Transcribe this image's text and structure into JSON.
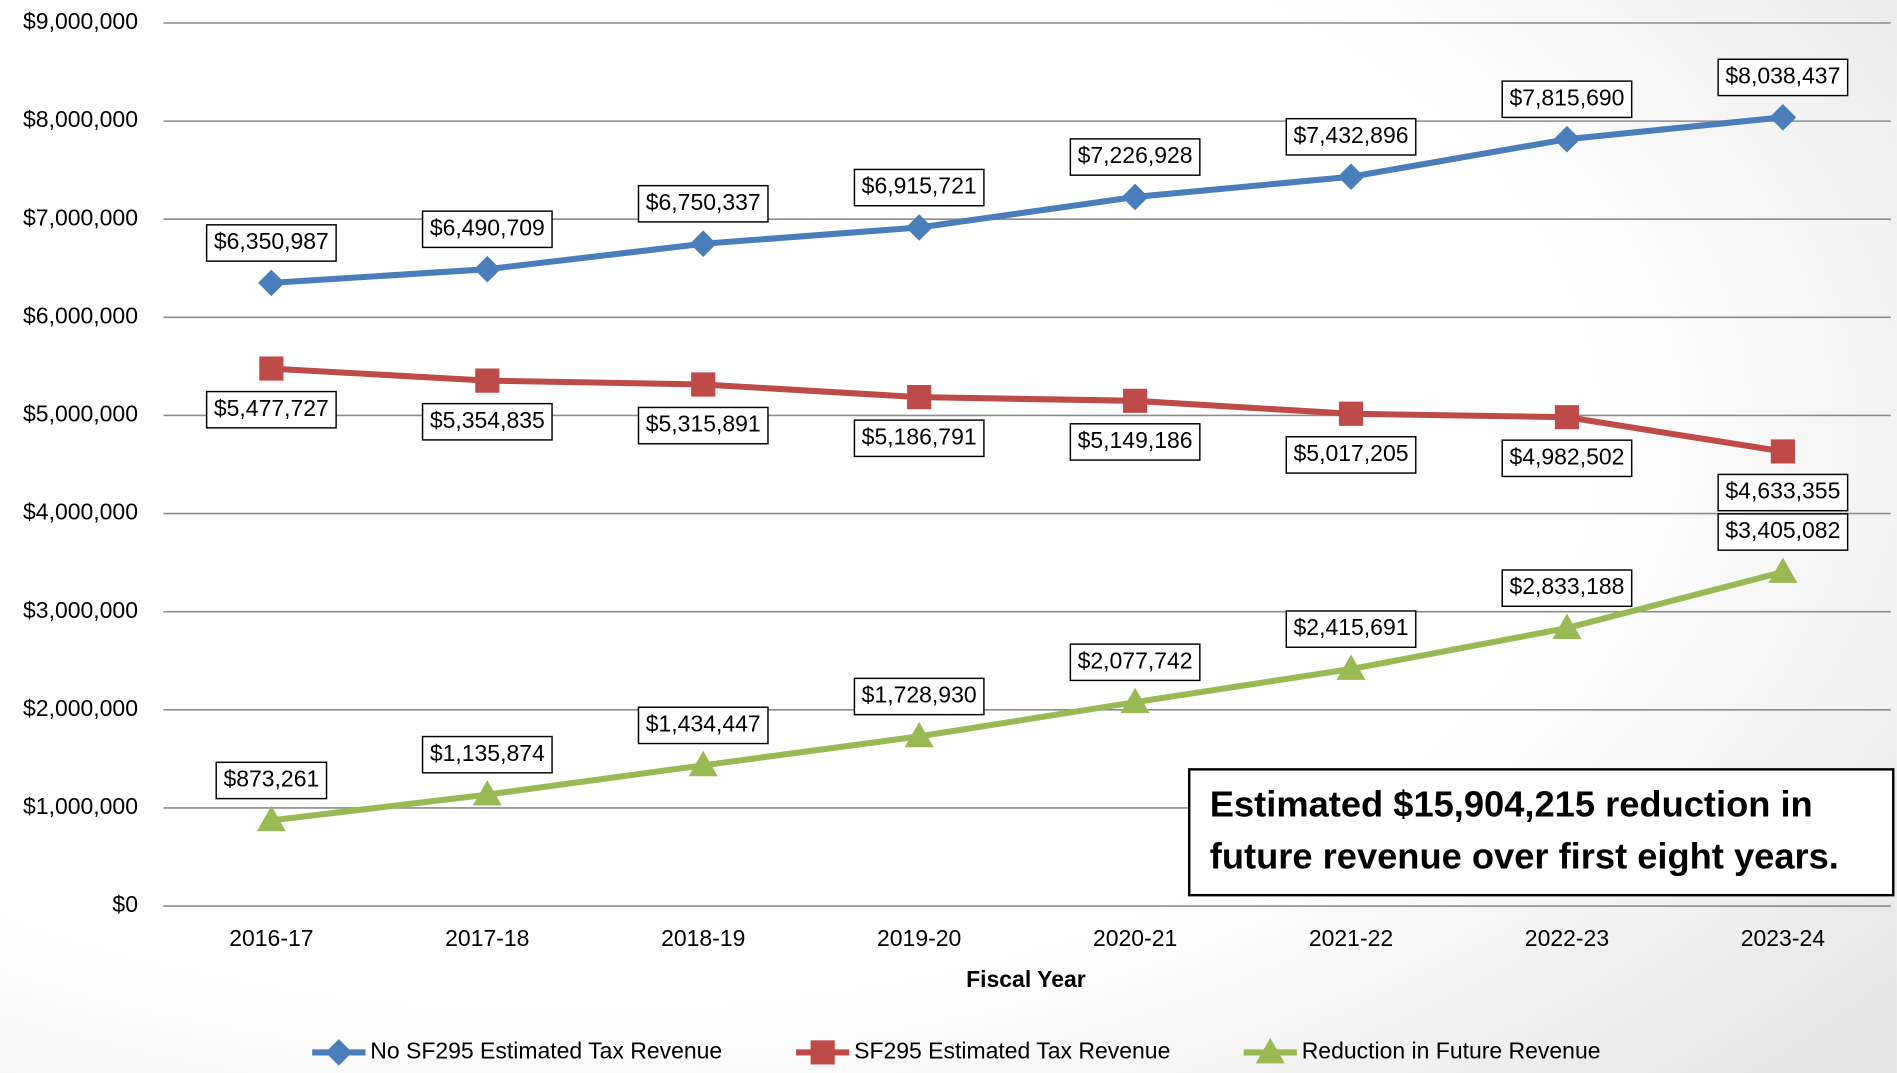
{
  "chart_data": {
    "type": "line",
    "xlabel": "Fiscal Year",
    "categories": [
      "2016-17",
      "2017-18",
      "2018-19",
      "2019-20",
      "2020-21",
      "2021-22",
      "2022-23",
      "2023-24"
    ],
    "series": [
      {
        "name": "No SF295 Estimated Tax Revenue",
        "color": "#4a7ebb",
        "marker": "diamond",
        "values": [
          6350987,
          6490709,
          6750337,
          6915721,
          7226928,
          7432896,
          7815690,
          8038437
        ],
        "value_labels": [
          "$6,350,987",
          "$6,490,709",
          "$6,750,337",
          "$6,915,721",
          "$7,226,928",
          "$7,432,896",
          "$7,815,690",
          "$8,038,437"
        ]
      },
      {
        "name": "SF295 Estimated Tax Revenue",
        "color": "#be4b48",
        "marker": "square",
        "values": [
          5477727,
          5354835,
          5315891,
          5186791,
          5149186,
          5017205,
          4982502,
          4633355
        ],
        "value_labels": [
          "$5,477,727",
          "$5,354,835",
          "$5,315,891",
          "$5,186,791",
          "$5,149,186",
          "$5,017,205",
          "$4,982,502",
          "$4,633,355"
        ]
      },
      {
        "name": "Reduction in Future Revenue",
        "color": "#98b954",
        "marker": "triangle",
        "values": [
          873261,
          1135874,
          1434447,
          1728930,
          2077742,
          2415691,
          2833188,
          3405082
        ],
        "value_labels": [
          "$873,261",
          "$1,135,874",
          "$1,434,447",
          "$1,728,930",
          "$2,077,742",
          "$2,415,691",
          "$2,833,188",
          "$3,405,082"
        ]
      }
    ],
    "ylim": [
      0,
      9000000
    ],
    "yticks": [
      {
        "value": 0,
        "label": "$0"
      },
      {
        "value": 1000000,
        "label": "$1,000,000"
      },
      {
        "value": 2000000,
        "label": "$2,000,000"
      },
      {
        "value": 3000000,
        "label": "$3,000,000"
      },
      {
        "value": 4000000,
        "label": "$4,000,000"
      },
      {
        "value": 5000000,
        "label": "$5,000,000"
      },
      {
        "value": 6000000,
        "label": "$6,000,000"
      },
      {
        "value": 7000000,
        "label": "$7,000,000"
      },
      {
        "value": 8000000,
        "label": "$8,000,000"
      },
      {
        "value": 9000000,
        "label": "$9,000,000"
      }
    ],
    "grid": true,
    "legend": "bottom",
    "annotation": [
      "Estimated $15,904,215 reduction in",
      "future revenue over first eight years."
    ]
  }
}
